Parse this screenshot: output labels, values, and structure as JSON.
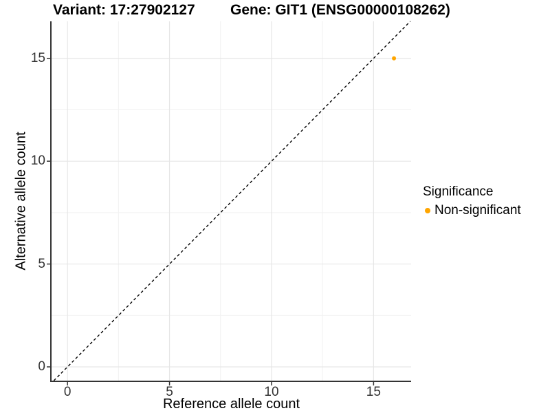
{
  "title": {
    "variant": "Variant: 17:27902127",
    "gene": "Gene: GIT1 (ENSG00000108262)"
  },
  "chart_data": {
    "type": "scatter",
    "title": "Variant: 17:27902127    Gene: GIT1 (ENSG00000108262)",
    "xlabel": "Reference allele count",
    "ylabel": "Alternative allele count",
    "xlim": [
      -0.78,
      16.84
    ],
    "ylim": [
      -0.67,
      16.8
    ],
    "x_ticks": [
      0,
      5,
      10,
      15
    ],
    "y_ticks": [
      0,
      5,
      10,
      15
    ],
    "x_minor_gridlines": [
      2.5,
      7.5,
      12.5
    ],
    "y_minor_gridlines": [
      2.5,
      7.5,
      12.5
    ],
    "grid": "on",
    "points": [
      {
        "x": 16,
        "y": 15,
        "series": "Non-significant",
        "color": "#FFA500"
      }
    ],
    "reference_line": {
      "type": "identity",
      "slope": 1,
      "intercept": 0,
      "linetype": "dashed",
      "color": "#000000"
    },
    "legend": {
      "title": "Significance",
      "position": "right",
      "items": [
        {
          "label": "Non-significant",
          "color": "#FFA500"
        }
      ]
    },
    "colors": {
      "grid_major": "#E6E6E6",
      "grid_minor": "#F1F1F1",
      "axis_line": "#333333",
      "tick_mark": "#333333",
      "tick_label": "#333333"
    }
  }
}
